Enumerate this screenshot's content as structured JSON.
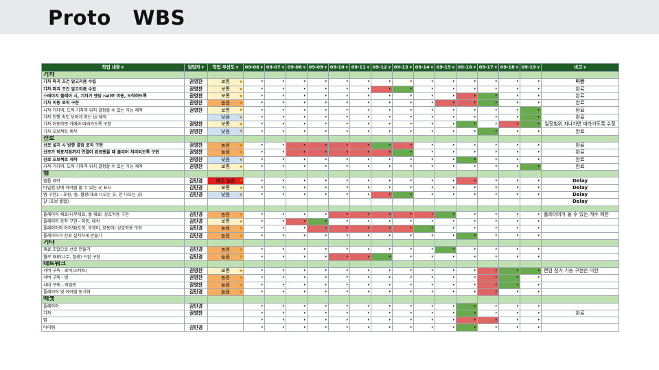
{
  "slide": {
    "title": "Proto   WBS"
  },
  "header": {
    "task": "작업 내용",
    "owner": "담당자",
    "priority": "작업 우선도",
    "dates": [
      "09-06",
      "09-07",
      "09-08",
      "09-09",
      "09-10",
      "09-11",
      "09-12",
      "09-13",
      "09-14",
      "09-15",
      "09-16",
      "09-17",
      "09-18",
      "09-19"
    ],
    "note": "비고"
  },
  "rows": [
    {
      "kind": "cat",
      "task": "기차"
    },
    {
      "kind": "task",
      "task": "기차 파괴 조건 알고리즘 수립",
      "bold": true,
      "owner": "권영찬",
      "priority": "보통",
      "pclass": "normal",
      "cells": "eeeeeeeeeeeeee",
      "note": "미완",
      "nbold": true
    },
    {
      "kind": "task",
      "task": "기차 파괴 조건 알고리즘 수립",
      "bold": true,
      "owner": "권영찬",
      "priority": "보통",
      "pclass": "normal",
      "cells": "eeeeeergeeeeee",
      "note": "완료"
    },
    {
      "kind": "task",
      "task": "스테이지 클레어 시, 기차가 엔딩 rail로 이동, 도착하도록",
      "bold": true,
      "owner": "권영찬",
      "priority": "보통",
      "pclass": "normal",
      "cells": "eeeeeeeeeergee",
      "note": "완료"
    },
    {
      "kind": "task",
      "task": "기차 이동 로직 구현",
      "bold": true,
      "owner": "권영찬",
      "priority": "높음",
      "pclass": "high",
      "cells": "eeeeeeeeerrgee",
      "note": "완료"
    },
    {
      "kind": "task",
      "task": "시작 기차역, 도착 기차역 위치 결정할 수 있는 기능 제작",
      "owner": "권영찬",
      "priority": "보통",
      "pclass": "normal",
      "cells": "eeeeeeeeeeeeeg",
      "note": "완료"
    },
    {
      "kind": "task",
      "task": "기차 진행 속도 보여게 하는 UI 제작",
      "owner": "",
      "priority": "낮음",
      "pclass": "low",
      "cells": "eeeeeeeeeeeeeg",
      "note": "완료"
    },
    {
      "kind": "task",
      "task": "기차 이동하면 카메라 따라가도록 구현",
      "owner": "권영찬",
      "priority": "보통",
      "pclass": "normal",
      "cells": "eeeeeeeeeegerg",
      "note": "일정범위 지나가면 따라가도록 수정"
    },
    {
      "kind": "task",
      "task": "기차 오브젝트 제작",
      "owner": "권영찬",
      "priority": "낮음",
      "pclass": "low",
      "cells": "eeeeeeeeeeegee",
      "note": "완료"
    },
    {
      "kind": "cat",
      "task": "선로"
    },
    {
      "kind": "task",
      "task": "선로 설치 시 방향 결정 로직 구현",
      "bold": true,
      "owner": "권영찬",
      "priority": "높음",
      "pclass": "high",
      "cells": "eerrrrgreeeeee",
      "note": "완료"
    },
    {
      "kind": "task",
      "task": "선로가 목표지점까지 연결이 완료됐을 때 클리어 처리되도록 구현",
      "bold": true,
      "owner": "권영찬",
      "priority": "높음",
      "pclass": "high",
      "cells": "eerrrrrgeeeeee",
      "note": "완료"
    },
    {
      "kind": "task",
      "task": "선로 오브젝트 제작",
      "bold": true,
      "owner": "권영찬",
      "priority": "낮음",
      "pclass": "low",
      "cells": "eeeeeeeeeegeee",
      "note": "완료"
    },
    {
      "kind": "task",
      "task": "시작 기차역, 도착 기차역 위치 결정할 수 있는 기능 제작",
      "owner": "권영찬",
      "priority": "보통",
      "pclass": "normal",
      "cells": "eeeeeeeeeeeeeg",
      "note": "완료"
    },
    {
      "kind": "cat",
      "task": "맵"
    },
    {
      "kind": "task",
      "task": "맵틀 제작",
      "owner": "김민경",
      "priority": "매우 높음",
      "pclass": "urgent",
      "cells": "eeeeeeeeeereee",
      "note": "Delay",
      "nbold": true
    },
    {
      "kind": "task",
      "task": "타일맵 상에 아이템 볼 수 있는 곳 표시",
      "owner": "김민경",
      "priority": "보통",
      "pclass": "normal",
      "cells": "eeeeeeeeeeeeee",
      "note": "Delay",
      "nbold": true
    },
    {
      "kind": "task",
      "task": "맵 구현1 - 초원, 숲, 월광(재료 나오는 곳, 안 나오는 곳)",
      "owner": "김민경",
      "priority": "낮음",
      "pclass": "low",
      "cells": "eeeeeergeeeeee",
      "note": "Delay",
      "nbold": true
    },
    {
      "kind": "task",
      "task": "갈 (초보 월탭)",
      "owner": "",
      "priority": "",
      "pclass": "",
      "cells": "",
      "note": "Delay",
      "nbold": true
    },
    {
      "kind": "sp"
    },
    {
      "kind": "task",
      "task": "플레이어 재료(나무재료, 월 재료) 상호작용 구현",
      "owner": "김민경",
      "priority": "높음",
      "pclass": "high",
      "cells": "eeeerrrrrgeeee",
      "note": "플레이어가 들 수 있는 개수 제한",
      "nleft": true
    },
    {
      "kind": "task",
      "task": "플레이어 동작 구현 - 이동, 대쉬",
      "owner": "김민경",
      "priority": "보통",
      "pclass": "normal",
      "cells": "eergeeeeeeeeee",
      "note": ""
    },
    {
      "kind": "task",
      "task": "플레이어와 아이템(도끼, 곡갱이, 양동이) 상호작용 구현",
      "owner": "김민경",
      "priority": "높음",
      "pclass": "high",
      "cells": "eeerrrrrgeeeee",
      "note": ""
    },
    {
      "kind": "task",
      "task": "플레이어가 선로 설치하게 만들기",
      "owner": "김민경",
      "priority": "높음",
      "pclass": "high",
      "cells": "eeeeeeeeeegeee",
      "note": ""
    },
    {
      "kind": "cat",
      "task": "기타"
    },
    {
      "kind": "task",
      "task": "재료 조합으로 선로 만들기",
      "owner": "김민경",
      "priority": "높음",
      "pclass": "high",
      "cells": "eeeeeeeeegeeee",
      "note": ""
    },
    {
      "kind": "task",
      "task": "월로 재료(나무, 철광) 드랍 구현",
      "owner": "김민경",
      "priority": "높음",
      "pclass": "high",
      "cells": "eeeerrgeeeeeee",
      "note": ""
    },
    {
      "kind": "cat",
      "task": "네트워크"
    },
    {
      "kind": "task",
      "task": "서버 구축 - 로비(스타트)",
      "owner": "권영찬",
      "priority": "보통",
      "pclass": "normal",
      "cells": "eeeeeeeeeeergg",
      "note": "랜덤 참가 기능 구현은 미완",
      "nleft": true
    },
    {
      "kind": "task",
      "task": "서버 구축 - 방",
      "owner": "권영찬",
      "priority": "높음",
      "pclass": "high",
      "cells": "eeeeeeeeeeerge",
      "note": ""
    },
    {
      "kind": "task",
      "task": "서버 구축 - 게임씬",
      "owner": "권영찬",
      "priority": "높음",
      "pclass": "high",
      "cells": "eeeeeeeeeeerge",
      "note": ""
    },
    {
      "kind": "task",
      "task": "플레이어 및 아이템 동기화",
      "owner": "김민경",
      "priority": "높음",
      "pclass": "high",
      "cells": "eeeeeeeeeeeree",
      "note": ""
    },
    {
      "kind": "cat",
      "task": "에셋"
    },
    {
      "kind": "task",
      "task": "플레이어",
      "owner": "김민경",
      "priority": "",
      "pclass": "",
      "cells": "eeeeeeeeeegeee",
      "note": ""
    },
    {
      "kind": "task",
      "task": "기차",
      "owner": "권영찬",
      "priority": "",
      "pclass": "",
      "cells": "eeeeeeeeeegeee",
      "note": "완료"
    },
    {
      "kind": "task",
      "task": "맵",
      "owner": "",
      "priority": "",
      "pclass": "",
      "cells": "eeeeeeeeeerree",
      "note": ""
    },
    {
      "kind": "task",
      "task": "아이템",
      "owner": "김민경",
      "priority": "",
      "pclass": "",
      "cells": "eeeeeeeeeegeee",
      "note": ""
    }
  ]
}
